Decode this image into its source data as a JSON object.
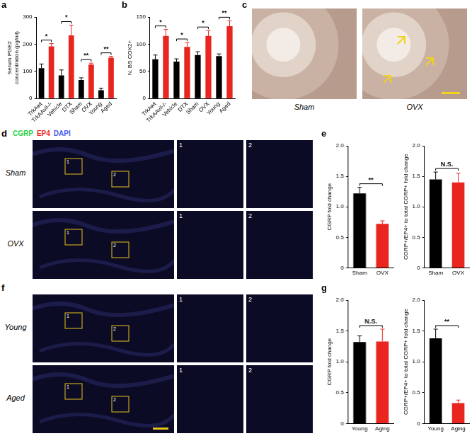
{
  "chart_data": [
    {
      "panel": "a",
      "type": "bar",
      "y_label": "Serum PGE2 concentration (pg/ml)",
      "categories": [
        "TrkAwt",
        "TrkAAvil-/-",
        "Vehicle",
        "DTX",
        "Sham",
        "OVX",
        "Young",
        "Aged"
      ],
      "values": [
        112,
        192,
        85,
        232,
        68,
        125,
        30,
        150
      ],
      "errors": [
        15,
        10,
        20,
        38,
        8,
        5,
        8,
        5
      ],
      "colors": [
        "#000000",
        "#e8251f",
        "#000000",
        "#e8251f",
        "#000000",
        "#e8251f",
        "#000000",
        "#e8251f"
      ],
      "ylim": [
        0,
        300
      ],
      "yticks": [
        0,
        100,
        200,
        300
      ],
      "grid": false,
      "comparisons": [
        {
          "pair": [
            "TrkAwt",
            "TrkAAvil-/-"
          ],
          "label": "*"
        },
        {
          "pair": [
            "Vehicle",
            "DTX"
          ],
          "label": "*"
        },
        {
          "pair": [
            "Sham",
            "OVX"
          ],
          "label": "**"
        },
        {
          "pair": [
            "Young",
            "Aged"
          ],
          "label": "**"
        }
      ]
    },
    {
      "panel": "b",
      "type": "bar",
      "y_label": "N. BS COX2+",
      "categories": [
        "TrkAwt",
        "TrkAAvil-/-",
        "Vehicle",
        "DTX",
        "Sham",
        "OVX",
        "Young",
        "Aged"
      ],
      "values": [
        72,
        115,
        68,
        95,
        80,
        115,
        78,
        133
      ],
      "errors": [
        8,
        12,
        5,
        8,
        6,
        10,
        4,
        10
      ],
      "colors": [
        "#000000",
        "#e8251f",
        "#000000",
        "#e8251f",
        "#000000",
        "#e8251f",
        "#000000",
        "#e8251f"
      ],
      "ylim": [
        0,
        150
      ],
      "yticks": [
        0,
        50,
        100,
        150
      ],
      "grid": false,
      "comparisons": [
        {
          "pair": [
            "TrkAwt",
            "TrkAAvil-/-"
          ],
          "label": "*"
        },
        {
          "pair": [
            "Vehicle",
            "DTX"
          ],
          "label": "*"
        },
        {
          "pair": [
            "Sham",
            "OVX"
          ],
          "label": "*"
        },
        {
          "pair": [
            "Young",
            "Aged"
          ],
          "label": "**"
        }
      ]
    },
    {
      "panel": "e",
      "type": "bar",
      "y_label": "CGRP fold change",
      "categories": [
        "Sham",
        "OVX"
      ],
      "values": [
        1.22,
        0.72
      ],
      "errors": [
        0.1,
        0.05
      ],
      "colors": [
        "#000000",
        "#e8251f"
      ],
      "ylim": [
        0,
        2
      ],
      "yticks": [
        0,
        0.5,
        {
          "value": 1,
          "label": "1.0"
        },
        1.5,
        {
          "value": 2,
          "label": "2.0"
        }
      ],
      "grid": false,
      "comparisons": [
        {
          "pair": [
            "Sham",
            "OVX"
          ],
          "label": "**"
        }
      ]
    },
    {
      "panel": "e",
      "type": "bar",
      "y_label": "CGRP+/EP4+ to total CGRP+ fold change",
      "categories": [
        "Sham",
        "OVX"
      ],
      "values": [
        1.45,
        1.4
      ],
      "errors": [
        0.12,
        0.15
      ],
      "colors": [
        "#000000",
        "#e8251f"
      ],
      "ylim": [
        0,
        2
      ],
      "yticks": [
        0,
        0.5,
        {
          "value": 1,
          "label": "1.0"
        },
        1.5,
        {
          "value": 2,
          "label": "2.0"
        }
      ],
      "grid": false,
      "comparisons": [
        {
          "pair": [
            "Sham",
            "OVX"
          ],
          "label": "N.S."
        }
      ]
    },
    {
      "panel": "g",
      "type": "bar",
      "y_label": "CGRP fold change",
      "categories": [
        "Young",
        "Aging"
      ],
      "values": [
        1.32,
        1.33
      ],
      "errors": [
        0.1,
        0.2
      ],
      "colors": [
        "#000000",
        "#e8251f"
      ],
      "ylim": [
        0,
        2
      ],
      "yticks": [
        0,
        0.5,
        {
          "value": 1,
          "label": "1.0"
        },
        1.5,
        {
          "value": 2,
          "label": "2.0"
        }
      ],
      "grid": false,
      "comparisons": [
        {
          "pair": [
            "Young",
            "Aging"
          ],
          "label": "N.S."
        }
      ]
    },
    {
      "panel": "g",
      "type": "bar",
      "y_label": "CGRP+/EP4+ to total CGRP+ fold change",
      "categories": [
        "Young",
        "Aging"
      ],
      "values": [
        1.38,
        0.33
      ],
      "errors": [
        0.15,
        0.05
      ],
      "colors": [
        "#000000",
        "#e8251f"
      ],
      "ylim": [
        0,
        2
      ],
      "yticks": [
        0,
        0.5,
        {
          "value": 1,
          "label": "1.0"
        },
        1.5,
        {
          "value": 2,
          "label": "2.0"
        }
      ],
      "grid": false,
      "comparisons": [
        {
          "pair": [
            "Young",
            "Aging"
          ],
          "label": "**"
        }
      ]
    }
  ],
  "images": [
    {
      "panel": "c",
      "labels": [
        "Sham",
        "OVX"
      ]
    },
    {
      "panel": "d",
      "legend": [
        {
          "name": "CGRP",
          "color": "#2bd14a"
        },
        {
          "name": "EP4",
          "color": "#e8251f"
        },
        {
          "name": "DAPI",
          "color": "#4a5cf0"
        }
      ],
      "rows": [
        "Sham",
        "OVX"
      ],
      "insets": [
        "1",
        "2"
      ]
    },
    {
      "panel": "f",
      "rows": [
        "Young",
        "Aged"
      ],
      "insets": [
        "1",
        "2"
      ]
    }
  ]
}
